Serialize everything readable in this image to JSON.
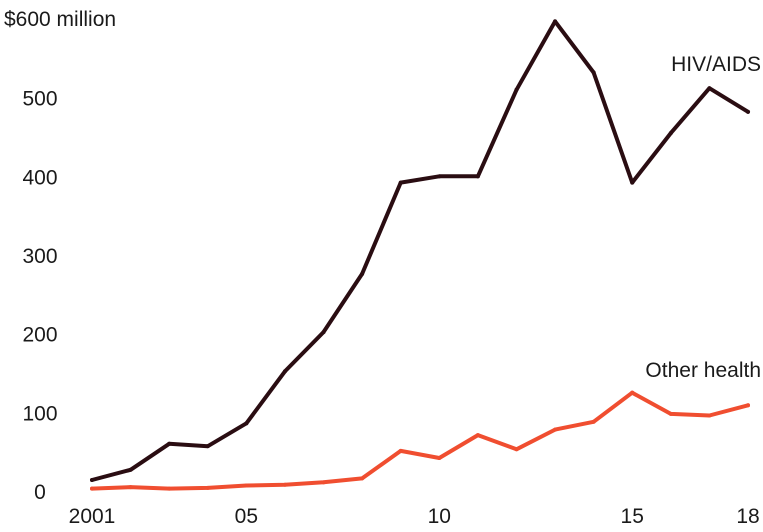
{
  "chart_data": {
    "type": "line",
    "title": "",
    "xlabel": "",
    "ylabel": "",
    "y_unit_label": "$600 million",
    "x": [
      2001,
      2002,
      2003,
      2004,
      2005,
      2006,
      2007,
      2008,
      2009,
      2010,
      2011,
      2012,
      2013,
      2014,
      2015,
      2016,
      2017,
      2018
    ],
    "x_tick_values": [
      2001,
      2005,
      2010,
      2015,
      2018
    ],
    "x_tick_labels": [
      "2001",
      "05",
      "10",
      "15",
      "18"
    ],
    "y_tick_values": [
      0,
      100,
      200,
      300,
      400,
      500,
      600
    ],
    "y_tick_labels": [
      "0",
      "100",
      "200",
      "300",
      "400",
      "500",
      ""
    ],
    "xlim": [
      2001,
      2018
    ],
    "ylim": [
      0,
      600
    ],
    "grid": false,
    "legend": "inline labels",
    "series": [
      {
        "name": "HIV/AIDS",
        "color": "#2a0d12",
        "values": [
          14,
          27,
          60,
          57,
          86,
          152,
          202,
          276,
          392,
          400,
          400,
          510,
          597,
          532,
          392,
          455,
          512,
          482
        ]
      },
      {
        "name": "Other health",
        "color": "#f04e30",
        "values": [
          3,
          5,
          3,
          4,
          7,
          8,
          11,
          16,
          51,
          42,
          71,
          53,
          78,
          88,
          125,
          98,
          96,
          109
        ]
      }
    ]
  }
}
